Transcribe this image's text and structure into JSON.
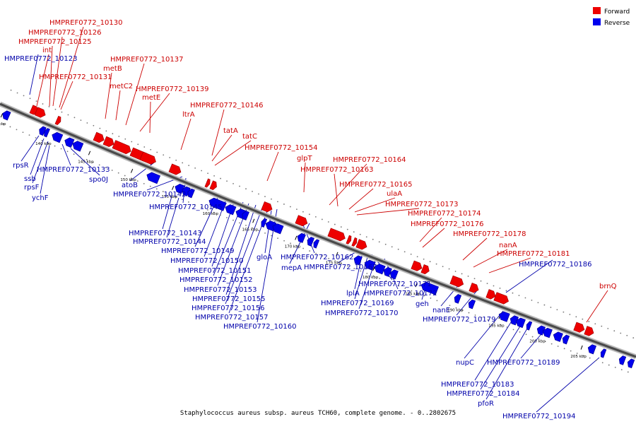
{
  "caption": "Staphylococcus aureus subsp. aureus TCH60, complete genome. - 0..2802675",
  "legend": [
    {
      "label": "Forward",
      "color": "#ee0000"
    },
    {
      "label": "Reverse",
      "color": "#0000ee"
    }
  ],
  "kbp_marks": [
    "135 kbp",
    "140 kbp",
    "145 kbp",
    "150 kbp",
    "155 kbp",
    "160 kbp",
    "165 kbp",
    "170 kbp",
    "175 kbp",
    "180 kbp",
    "185 kbp",
    "190 kbp",
    "195 kbp",
    "200 kbp",
    "205 kbp"
  ],
  "forward_labels": [
    "HMPREF0772_10130",
    "HMPREF0772_10126",
    "HMPREF0772_10125",
    "int",
    "HMPREF0772_10131",
    "HMPREF0772_10137",
    "metB",
    "metC2",
    "HMPREF0772_10139",
    "metE",
    "HMPREF0772_10146",
    "ltrA",
    "tatA",
    "tatC",
    "HMPREF0772_10154",
    "glpT",
    "HMPREF0772_10164",
    "HMPREF0772_10163",
    "HMPREF0772_10165",
    "ulaA",
    "HMPREF0772_10173",
    "HMPREF0772_10174",
    "HMPREF0772_10176",
    "HMPREF0772_10178",
    "nanA",
    "HMPREF0772_10181",
    "brnQ"
  ],
  "reverse_labels": [
    "HMPREF0772_10123",
    "rpsR",
    "ssb",
    "rpsF",
    "ychF",
    "HMPREF0772_10133",
    "spo0J",
    "atoB",
    "HMPREF0772_10142",
    "HMPREF0772_10145",
    "HMPREF0772_10143",
    "HMPREF0772_10144",
    "HMPREF0772_10149",
    "HMPREF0772_10150",
    "HMPREF0772_10151",
    "HMPREF0772_10152",
    "HMPREF0772_10153",
    "HMPREF0772_10155",
    "HMPREF0772_10156",
    "HMPREF0772_10157",
    "HMPREF0772_10160",
    "gloA",
    "HMPREF0772_10162",
    "mepA",
    "HMPREF0772_10167",
    "HMPREF0772_10171",
    "lplA",
    "HMPREF0772_10172",
    "HMPREF0772_10169",
    "HMPREF0772_10170",
    "geh",
    "nanE",
    "HMPREF0772_10179",
    "HMPREF0772_10186",
    "nupC",
    "HMPREF0772_10189",
    "HMPREF0772_10183",
    "HMPREF0772_10184",
    "pfoR",
    "HMPREF0772_10194"
  ]
}
